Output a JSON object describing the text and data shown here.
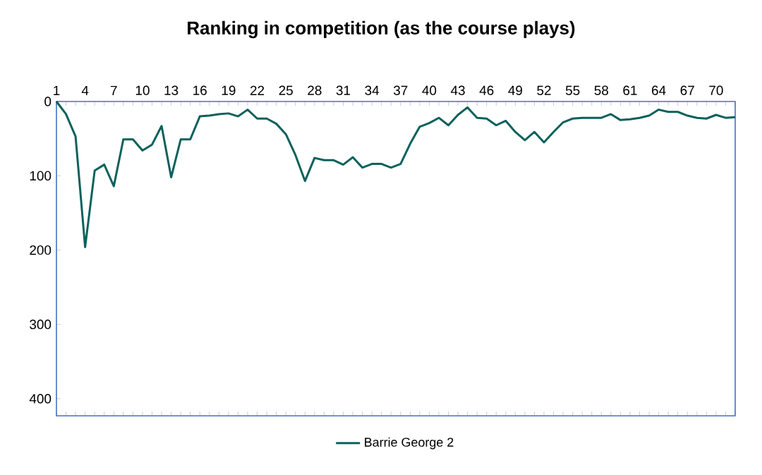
{
  "chart_data": {
    "type": "line",
    "title": "Ranking in competition (as the course plays)",
    "categories": [
      "1",
      null,
      null,
      "4",
      null,
      null,
      "7",
      null,
      null,
      "10",
      null,
      null,
      "13",
      null,
      null,
      "16",
      null,
      null,
      "19",
      null,
      null,
      "22",
      null,
      null,
      "25",
      null,
      null,
      "28",
      null,
      null,
      "31",
      null,
      null,
      "34",
      null,
      null,
      "37",
      null,
      null,
      "40",
      null,
      null,
      "43",
      null,
      null,
      "46",
      null,
      null,
      "49",
      null,
      null,
      "52",
      null,
      null,
      "55",
      null,
      null,
      "58",
      null,
      null,
      "61",
      null,
      null,
      "64",
      null,
      null,
      "67",
      null,
      null,
      "70",
      null,
      null
    ],
    "series": [
      {
        "name": "Barrie George 2",
        "color": "#0b615c",
        "values": [
          0,
          17,
          47,
          196,
          93,
          85,
          114,
          51,
          51,
          66,
          58,
          33,
          102,
          51,
          51,
          20,
          19,
          17,
          16,
          20,
          11,
          23,
          23,
          30,
          44,
          72,
          107,
          76,
          79,
          79,
          85,
          75,
          89,
          84,
          84,
          89,
          84,
          57,
          34,
          29,
          22,
          32,
          18,
          8,
          22,
          23,
          32,
          26,
          41,
          52,
          41,
          55,
          41,
          28,
          23,
          22,
          22,
          22,
          17,
          25,
          24,
          22,
          19,
          11,
          14,
          14,
          19,
          22,
          23,
          18,
          22,
          21
        ]
      }
    ],
    "ylim": [
      423,
      0
    ],
    "yticks": [
      0,
      100,
      200,
      300,
      400
    ],
    "grid": false,
    "legend": "bottom",
    "marker": "none",
    "line_style": "solid"
  }
}
